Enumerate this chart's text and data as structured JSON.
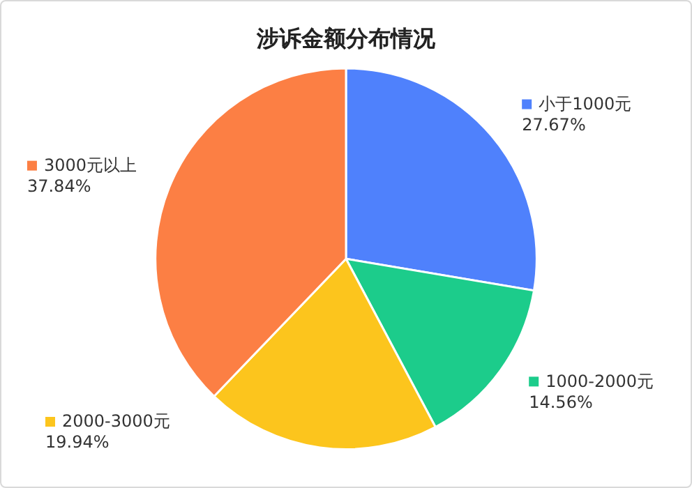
{
  "chart_data": {
    "type": "pie",
    "title": "涉诉金额分布情况",
    "categories": [
      "小于1000元",
      "1000-2000元",
      "2000-3000元",
      "3000元以上"
    ],
    "values": [
      27.67,
      14.56,
      19.94,
      37.84
    ],
    "value_labels": [
      "27.67%",
      "14.56%",
      "19.94%",
      "37.84%"
    ],
    "colors": [
      "#4f81fc",
      "#1ccc8b",
      "#fcc51d",
      "#fc7f44"
    ],
    "legend": "right"
  }
}
